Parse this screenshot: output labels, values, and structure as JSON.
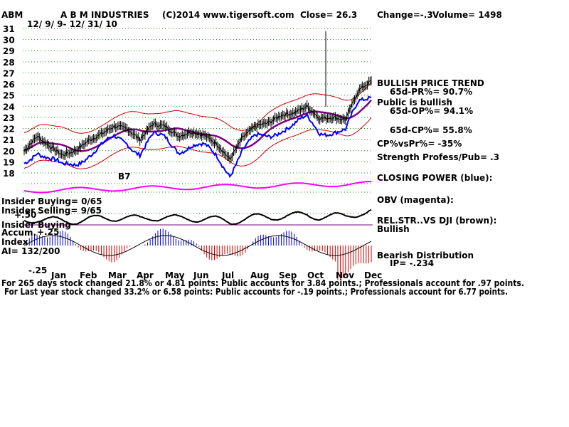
{
  "header": {
    "symbol": "ABM",
    "company": "A B M INDUSTRIES",
    "copyright": "(C)2014 www.tigersoft.com",
    "close": "Close= 26.3",
    "change": "Change=-.3",
    "volume": "Volume= 1498",
    "date_range": "12/ 9/ 9- 12/ 31/ 10"
  },
  "left_labels": {
    "insider_buying": "Insider Buying= 0/65",
    "insider_selling": "Insider Selling= 9/65",
    "insider_buying2": "Insider Buying",
    "accum_index": "Accum. Index",
    "ai": "AI= 132/200",
    "v50": "+.50",
    "v25": "+.25",
    "vm25": "-.25",
    "b7": "B7"
  },
  "right_labels": {
    "bullish_trend": "BULLISH PRICE TREND",
    "pr": "65d-PR%= 90.7%",
    "public_bullish": "Public is bullish",
    "op": "65d-OP%= 94.1%",
    "cp": "65d-CP%= 55.8%",
    "cpvspr": "CP%vsPr%= -35%",
    "strength": "Strength Profess/Pub= .3",
    "closing_power": "CLOSING POWER (blue):",
    "obv": "OBV (magenta):",
    "relstr": "REL.STR..VS DJI (brown):",
    "bullish": "Bullish",
    "bearish_dist": "Bearish Distribution",
    "ip": "IP= -.234"
  },
  "footer": {
    "line1": "For 265 days stock changed 21.8% or 4.81 points: Public accounts for 3.84 points.; Professionals account for .97 points.",
    "line2": "For Last year stock changed 33.2% or 6.58 points: Public accounts for -.19 points.; Professionals account for 6.77 points."
  },
  "colors": {
    "grid": "#1a8a1a",
    "bands": "#cc0000",
    "ma": "#800080",
    "closing_power": "#0000ff",
    "obv": "#ff00ff",
    "relstr": "#000000",
    "accum_pos": "#0000cc",
    "accum_neg": "#cc0000"
  },
  "chart_data": {
    "type": "line",
    "y_ticks": [
      "31",
      "30",
      "29",
      "28",
      "27",
      "26",
      "25",
      "24",
      "23",
      "22",
      "21",
      "20",
      "19",
      "18"
    ],
    "ylim": [
      18,
      31
    ],
    "months": [
      "Jan",
      "Feb",
      "Mar",
      "Apr",
      "May",
      "Jun",
      "Jul",
      "Aug",
      "Sep",
      "Oct",
      "Nov",
      "Dec"
    ],
    "price": [
      20.0,
      21.3,
      20.4,
      19.6,
      20.0,
      20.9,
      21.5,
      22.2,
      22.0,
      21.0,
      22.4,
      22.2,
      21.3,
      21.7,
      21.4,
      20.6,
      19.2,
      21.2,
      22.2,
      22.5,
      23.2,
      23.4,
      24.0,
      22.9,
      23.0,
      22.8,
      25.4,
      26.3
    ]
  }
}
